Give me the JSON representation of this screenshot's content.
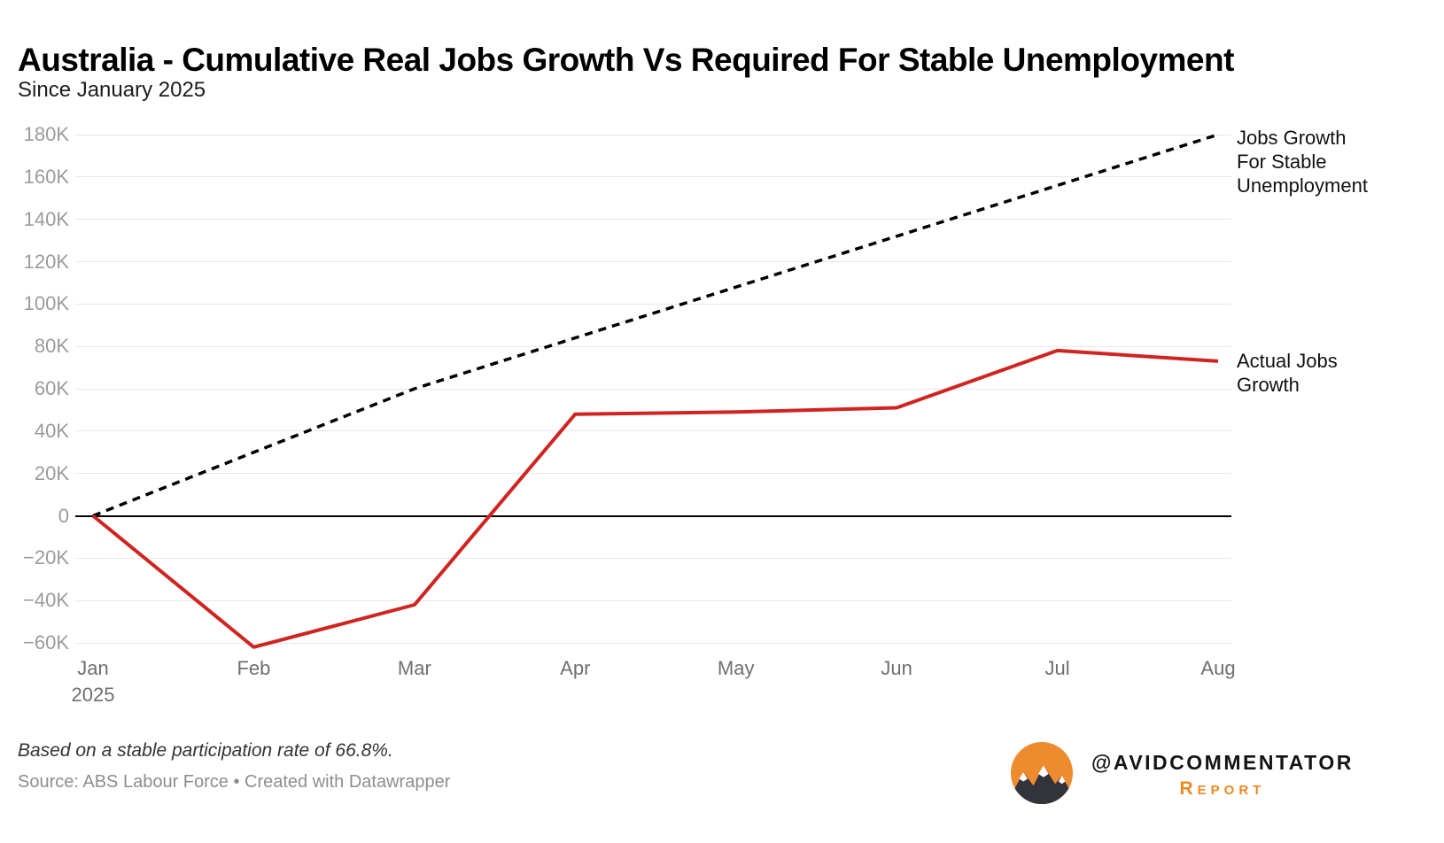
{
  "header": {
    "title": "Australia - Cumulative Real Jobs Growth Vs Required For Stable Unemployment",
    "subtitle": "Since January 2025"
  },
  "chart_data": {
    "type": "line",
    "title": "Australia - Cumulative Real Jobs Growth Vs Required For Stable Unemployment",
    "subtitle": "Since January 2025",
    "categories": [
      "Jan",
      "Feb",
      "Mar",
      "Apr",
      "May",
      "Jun",
      "Jul",
      "Aug"
    ],
    "x_first_label_second_line": "2025",
    "ylim": [
      -60000,
      180000
    ],
    "grid": "horizontal",
    "yticks": [
      {
        "value": 180000,
        "label": "180K"
      },
      {
        "value": 160000,
        "label": "160K"
      },
      {
        "value": 140000,
        "label": "140K"
      },
      {
        "value": 120000,
        "label": "120K"
      },
      {
        "value": 100000,
        "label": "100K"
      },
      {
        "value": 80000,
        "label": "80K"
      },
      {
        "value": 60000,
        "label": "60K"
      },
      {
        "value": 40000,
        "label": "40K"
      },
      {
        "value": 20000,
        "label": "20K"
      },
      {
        "value": 0,
        "label": "0"
      },
      {
        "value": -20000,
        "label": "−20K"
      },
      {
        "value": -40000,
        "label": "−40K"
      },
      {
        "value": -60000,
        "label": "−60K"
      }
    ],
    "series": [
      {
        "name": "Jobs Growth For Stable Unemployment",
        "style": "dashed",
        "color": "#000000",
        "values": [
          0,
          30000,
          60000,
          84000,
          108000,
          132000,
          156000,
          180000
        ],
        "end_label": "Jobs Growth\nFor Stable\nUnemployment"
      },
      {
        "name": "Actual Jobs Growth",
        "style": "solid",
        "color": "#d02421",
        "values": [
          0,
          -62000,
          -42000,
          48000,
          49000,
          51000,
          78000,
          73000
        ],
        "end_label": "Actual Jobs\nGrowth"
      }
    ],
    "legend_position": "right-of-line-ends"
  },
  "footer": {
    "note": "Based on a stable participation rate of 66.8%.",
    "source": "Source: ABS Labour Force • Created with Datawrapper"
  },
  "logo": {
    "icon": "mountain-sun-icon",
    "handle": "@AVIDCOMMENTATOR",
    "subtitle": "Report"
  }
}
